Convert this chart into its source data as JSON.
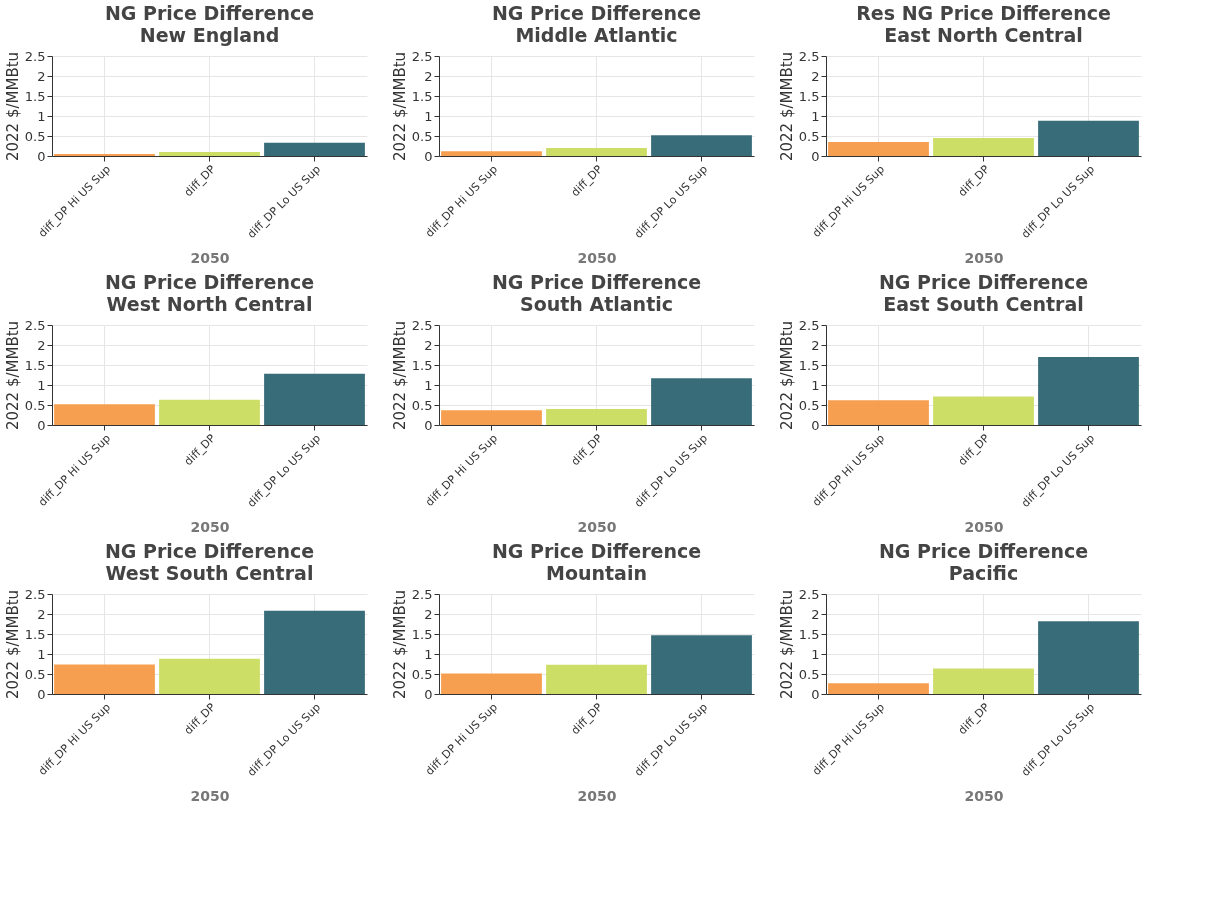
{
  "chart_data": [
    {
      "type": "bar",
      "title": "NG Price Difference",
      "subtitle": "New England",
      "xlabel": "2050",
      "ylabel": "2022 $/MMBtu",
      "categories": [
        "diff_DP Hi US Sup",
        "diff_DP",
        "diff_DP Lo US Sup"
      ],
      "values": [
        0.05,
        0.1,
        0.33
      ],
      "colors": [
        "#f59a47",
        "#c9dc5e",
        "#2e6472"
      ],
      "ylim": [
        0,
        2.5
      ],
      "yticks": [
        0,
        0.5,
        1,
        1.5,
        2,
        2.5
      ],
      "grid": true,
      "legend": false
    },
    {
      "type": "bar",
      "title": "NG Price Difference",
      "subtitle": "Middle Atlantic",
      "xlabel": "2050",
      "ylabel": "2022 $/MMBtu",
      "categories": [
        "diff_DP Hi US Sup",
        "diff_DP",
        "diff_DP Lo US Sup"
      ],
      "values": [
        0.12,
        0.2,
        0.52
      ],
      "colors": [
        "#f59a47",
        "#c9dc5e",
        "#2e6472"
      ],
      "ylim": [
        0,
        2.5
      ],
      "yticks": [
        0,
        0.5,
        1,
        1.5,
        2,
        2.5
      ],
      "grid": true,
      "legend": false
    },
    {
      "type": "bar",
      "title": "Res NG Price Difference",
      "subtitle": "East North Central",
      "xlabel": "2050",
      "ylabel": "2022 $/MMBtu",
      "categories": [
        "diff_DP Hi US Sup",
        "diff_DP",
        "diff_DP Lo US Sup"
      ],
      "values": [
        0.35,
        0.45,
        0.88
      ],
      "colors": [
        "#f59a47",
        "#c9dc5e",
        "#2e6472"
      ],
      "ylim": [
        0,
        2.5
      ],
      "yticks": [
        0,
        0.5,
        1,
        1.5,
        2,
        2.5
      ],
      "grid": true,
      "legend": false
    },
    {
      "type": "bar",
      "title": "NG Price Difference",
      "subtitle": "West North Central",
      "xlabel": "2050",
      "ylabel": "2022 $/MMBtu",
      "categories": [
        "diff_DP Hi US Sup",
        "diff_DP",
        "diff_DP Lo US Sup"
      ],
      "values": [
        0.52,
        0.63,
        1.28
      ],
      "colors": [
        "#f59a47",
        "#c9dc5e",
        "#2e6472"
      ],
      "ylim": [
        0,
        2.5
      ],
      "yticks": [
        0,
        0.5,
        1,
        1.5,
        2,
        2.5
      ],
      "grid": true,
      "legend": false
    },
    {
      "type": "bar",
      "title": "NG Price Difference",
      "subtitle": "South Atlantic",
      "xlabel": "2050",
      "ylabel": "2022 $/MMBtu",
      "categories": [
        "diff_DP Hi US Sup",
        "diff_DP",
        "diff_DP Lo US Sup"
      ],
      "values": [
        0.37,
        0.4,
        1.17
      ],
      "colors": [
        "#f59a47",
        "#c9dc5e",
        "#2e6472"
      ],
      "ylim": [
        0,
        2.5
      ],
      "yticks": [
        0,
        0.5,
        1,
        1.5,
        2,
        2.5
      ],
      "grid": true,
      "legend": false
    },
    {
      "type": "bar",
      "title": "NG Price Difference",
      "subtitle": "East South Central",
      "xlabel": "2050",
      "ylabel": "2022 $/MMBtu",
      "categories": [
        "diff_DP Hi US Sup",
        "diff_DP",
        "diff_DP Lo US Sup"
      ],
      "values": [
        0.62,
        0.71,
        1.7
      ],
      "colors": [
        "#f59a47",
        "#c9dc5e",
        "#2e6472"
      ],
      "ylim": [
        0,
        2.5
      ],
      "yticks": [
        0,
        0.5,
        1,
        1.5,
        2,
        2.5
      ],
      "grid": true,
      "legend": false
    },
    {
      "type": "bar",
      "title": "NG Price Difference",
      "subtitle": "West South Central",
      "xlabel": "2050",
      "ylabel": "2022 $/MMBtu",
      "categories": [
        "diff_DP Hi US Sup",
        "diff_DP",
        "diff_DP Lo US Sup"
      ],
      "values": [
        0.74,
        0.88,
        2.08
      ],
      "colors": [
        "#f59a47",
        "#c9dc5e",
        "#2e6472"
      ],
      "ylim": [
        0,
        2.5
      ],
      "yticks": [
        0,
        0.5,
        1,
        1.5,
        2,
        2.5
      ],
      "grid": true,
      "legend": false
    },
    {
      "type": "bar",
      "title": "NG Price Difference",
      "subtitle": "Mountain",
      "xlabel": "2050",
      "ylabel": "2022 $/MMBtu",
      "categories": [
        "diff_DP Hi US Sup",
        "diff_DP",
        "diff_DP Lo US Sup"
      ],
      "values": [
        0.51,
        0.73,
        1.47
      ],
      "colors": [
        "#f59a47",
        "#c9dc5e",
        "#2e6472"
      ],
      "ylim": [
        0,
        2.5
      ],
      "yticks": [
        0,
        0.5,
        1,
        1.5,
        2,
        2.5
      ],
      "grid": true,
      "legend": false
    },
    {
      "type": "bar",
      "title": "NG Price Difference",
      "subtitle": "Pacific",
      "xlabel": "2050",
      "ylabel": "2022 $/MMBtu",
      "categories": [
        "diff_DP Hi US Sup",
        "diff_DP",
        "diff_DP Lo US Sup"
      ],
      "values": [
        0.27,
        0.64,
        1.82
      ],
      "colors": [
        "#f59a47",
        "#c9dc5e",
        "#2e6472"
      ],
      "ylim": [
        0,
        2.5
      ],
      "yticks": [
        0,
        0.5,
        1,
        1.5,
        2,
        2.5
      ],
      "grid": true,
      "legend": false
    }
  ]
}
